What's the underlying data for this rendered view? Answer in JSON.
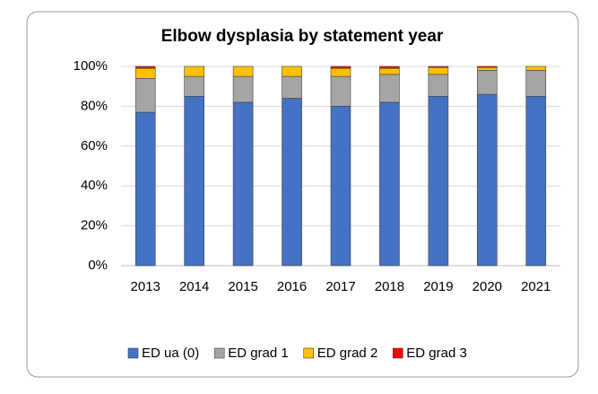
{
  "chart_data": {
    "type": "stacked_bar",
    "title": "Elbow dysplasia by statement year",
    "categories": [
      "2013",
      "2014",
      "2015",
      "2016",
      "2017",
      "2018",
      "2019",
      "2020",
      "2021"
    ],
    "series": [
      {
        "name": "ED ua (0)",
        "color": "#4472c4",
        "values": [
          77,
          85,
          82,
          84,
          80,
          82,
          85,
          86,
          85
        ]
      },
      {
        "name": "ED grad 1",
        "color": "#a5a5a5",
        "values": [
          17,
          10,
          13,
          11,
          15,
          14,
          11,
          12,
          13
        ]
      },
      {
        "name": "ED grad 2",
        "color": "#ffc000",
        "values": [
          5,
          5,
          5,
          5,
          4,
          3,
          3.5,
          1.5,
          2
        ]
      },
      {
        "name": "ED grad 3",
        "color": "#ff0000",
        "values": [
          1,
          0,
          0,
          0,
          1,
          1,
          0.5,
          0.5,
          0
        ]
      }
    ],
    "ylim": [
      0,
      100
    ],
    "yticks": [
      {
        "value": 0,
        "label": "0%"
      },
      {
        "value": 20,
        "label": "20%"
      },
      {
        "value": 40,
        "label": "40%"
      },
      {
        "value": 60,
        "label": "60%"
      },
      {
        "value": 80,
        "label": "80%"
      },
      {
        "value": 100,
        "label": "100%"
      }
    ],
    "grid": true
  }
}
